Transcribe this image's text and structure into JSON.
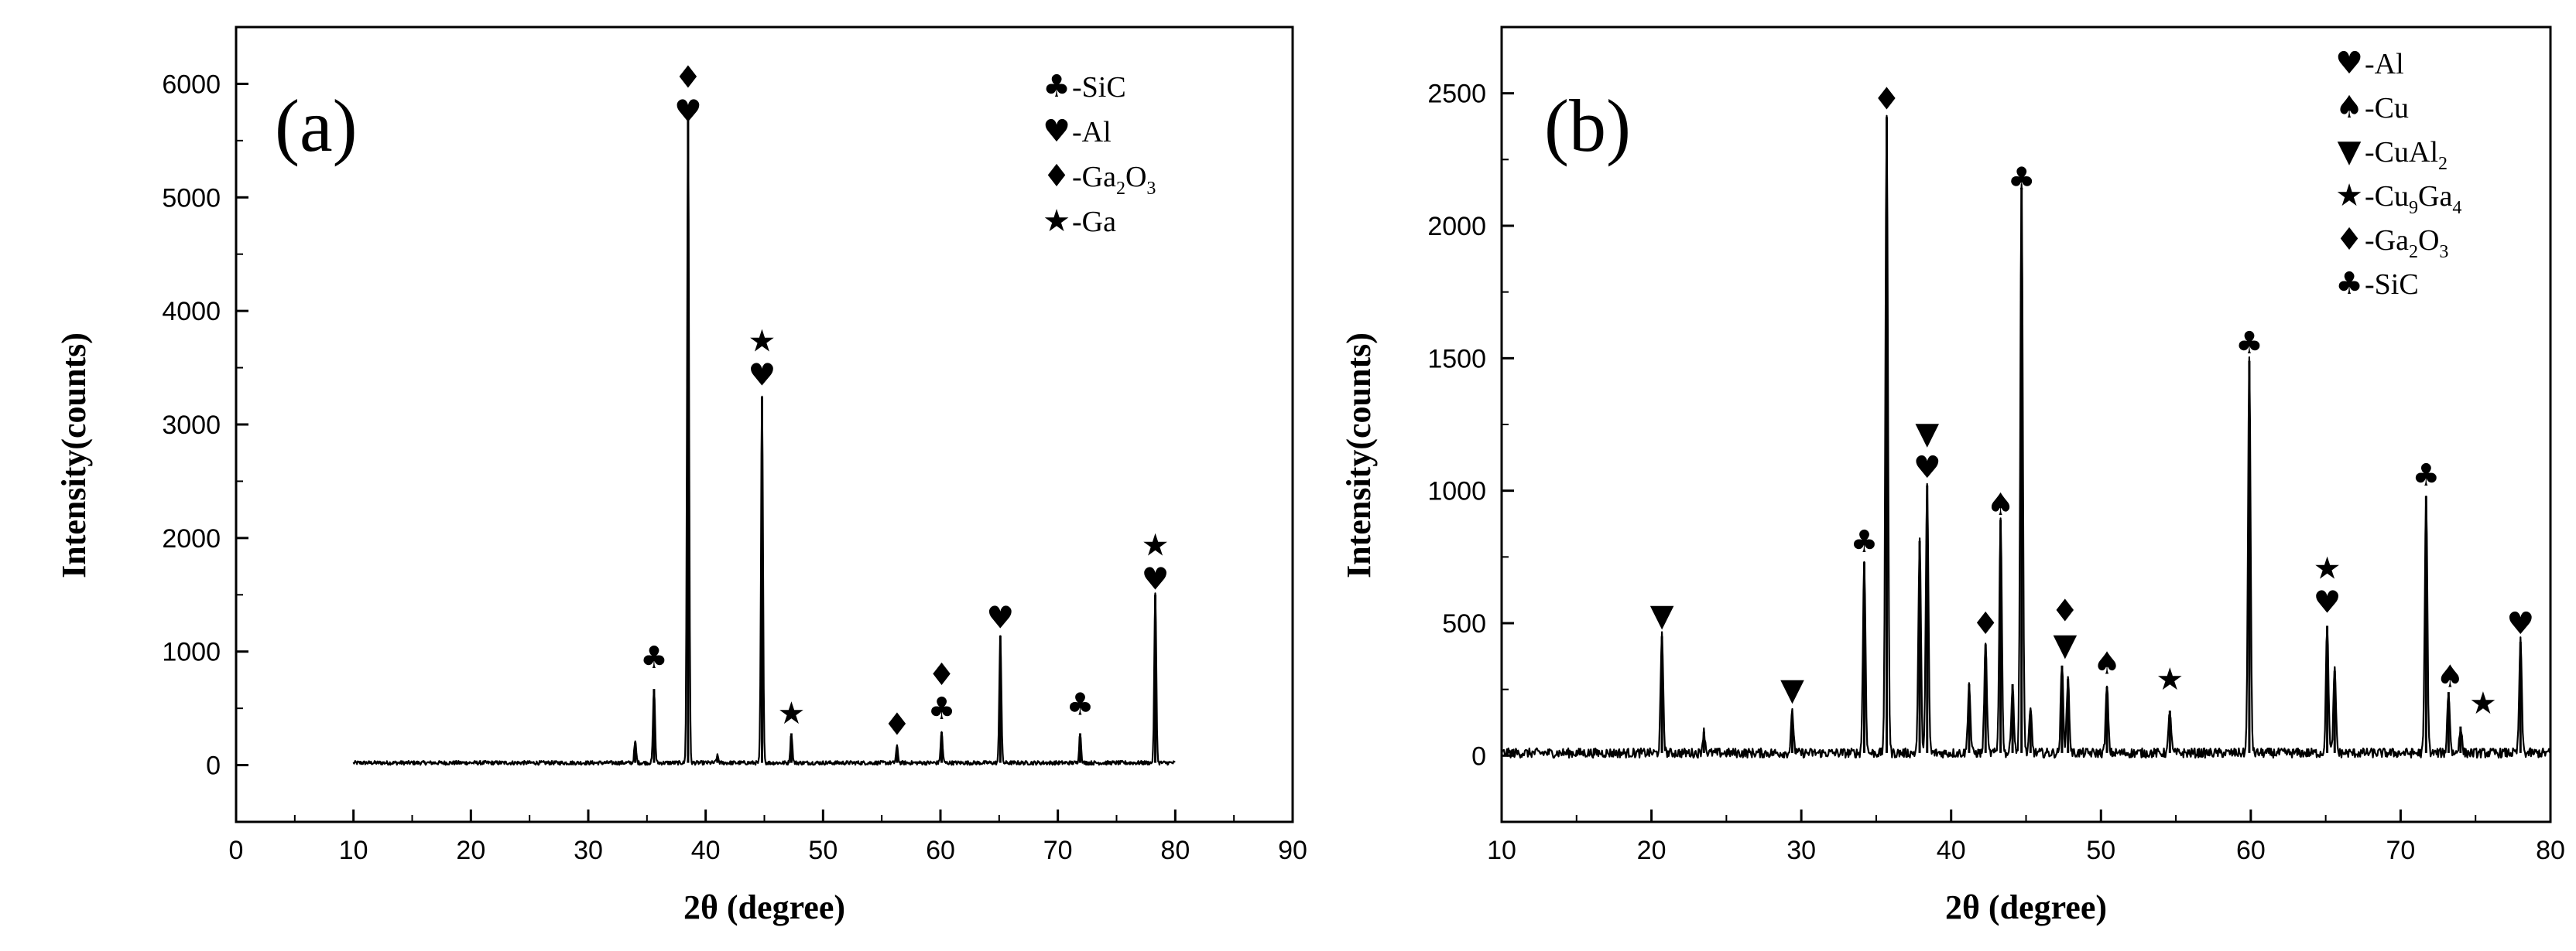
{
  "chart_data": [
    {
      "panel": "(a)",
      "type": "line",
      "xlabel": "2θ (degree)",
      "ylabel": "Intensity(counts)",
      "xlim": [
        0,
        90
      ],
      "ylim": [
        -500,
        6500
      ],
      "xticks": [
        0,
        10,
        20,
        30,
        40,
        50,
        60,
        70,
        80,
        90
      ],
      "yticks": [
        0,
        1000,
        2000,
        3000,
        4000,
        5000,
        6000
      ],
      "baseline": 20,
      "data_range": [
        10,
        80
      ],
      "legend_position": "top-right",
      "legend": [
        {
          "symbol": "club",
          "label": "-SiC"
        },
        {
          "symbol": "heart",
          "label": "-Al"
        },
        {
          "symbol": "diamond",
          "label": "-Ga",
          "sub1": "2",
          "mid": "O",
          "sub2": "3"
        },
        {
          "symbol": "star",
          "label": "-Ga"
        }
      ],
      "peaks": [
        {
          "x": 34.0,
          "y": 180
        },
        {
          "x": 35.6,
          "y": 650
        },
        {
          "x": 38.5,
          "y": 5700
        },
        {
          "x": 41.0,
          "y": 60
        },
        {
          "x": 44.8,
          "y": 3220
        },
        {
          "x": 47.3,
          "y": 260
        },
        {
          "x": 56.3,
          "y": 140
        },
        {
          "x": 60.1,
          "y": 270
        },
        {
          "x": 65.1,
          "y": 1120
        },
        {
          "x": 71.9,
          "y": 260
        },
        {
          "x": 78.3,
          "y": 1480
        }
      ],
      "markers": [
        {
          "x": 35.6,
          "y": 950,
          "symbols": [
            "club"
          ]
        },
        {
          "x": 38.5,
          "y": 5760,
          "symbols": [
            "heart",
            "diamond"
          ]
        },
        {
          "x": 44.8,
          "y": 3440,
          "symbols": [
            "heart",
            "star"
          ]
        },
        {
          "x": 47.3,
          "y": 460,
          "symbols": [
            "star"
          ]
        },
        {
          "x": 56.3,
          "y": 360,
          "symbols": [
            "diamond"
          ]
        },
        {
          "x": 60.1,
          "y": 500,
          "symbols": [
            "club",
            "diamond"
          ]
        },
        {
          "x": 65.1,
          "y": 1300,
          "symbols": [
            "heart"
          ]
        },
        {
          "x": 71.9,
          "y": 540,
          "symbols": [
            "club"
          ]
        },
        {
          "x": 78.3,
          "y": 1640,
          "symbols": [
            "heart",
            "star"
          ]
        }
      ]
    },
    {
      "panel": "(b)",
      "type": "line",
      "xlabel": "2θ (degree)",
      "ylabel": "Intensity(counts)",
      "xlim": [
        10,
        80
      ],
      "ylim": [
        -250,
        2750
      ],
      "xticks": [
        10,
        20,
        30,
        40,
        50,
        60,
        70,
        80
      ],
      "yticks": [
        0,
        500,
        1000,
        1500,
        2000,
        2500
      ],
      "baseline": 10,
      "data_range": [
        10,
        80
      ],
      "legend_position": "top-right",
      "legend": [
        {
          "symbol": "heart",
          "label": "-Al"
        },
        {
          "symbol": "spade",
          "label": "-Cu"
        },
        {
          "symbol": "triangle-down",
          "label": "-CuAl",
          "sub1": "2"
        },
        {
          "symbol": "star",
          "label": "-Cu",
          "sub1": "9",
          "mid": "Ga",
          "sub2": "4"
        },
        {
          "symbol": "diamond",
          "label": "-Ga",
          "sub1": "2",
          "mid": "O",
          "sub2": "3"
        },
        {
          "symbol": "club",
          "label": "-SiC"
        }
      ],
      "peaks": [
        {
          "x": 20.7,
          "y": 440
        },
        {
          "x": 23.5,
          "y": 80
        },
        {
          "x": 29.4,
          "y": 150
        },
        {
          "x": 34.2,
          "y": 720
        },
        {
          "x": 35.7,
          "y": 2400
        },
        {
          "x": 37.9,
          "y": 800
        },
        {
          "x": 38.4,
          "y": 1010
        },
        {
          "x": 41.2,
          "y": 260
        },
        {
          "x": 42.3,
          "y": 410
        },
        {
          "x": 43.3,
          "y": 880
        },
        {
          "x": 44.1,
          "y": 260
        },
        {
          "x": 44.7,
          "y": 2130
        },
        {
          "x": 45.3,
          "y": 160
        },
        {
          "x": 47.4,
          "y": 330
        },
        {
          "x": 47.8,
          "y": 280
        },
        {
          "x": 50.4,
          "y": 250
        },
        {
          "x": 54.6,
          "y": 160
        },
        {
          "x": 59.9,
          "y": 1480
        },
        {
          "x": 65.1,
          "y": 480
        },
        {
          "x": 65.6,
          "y": 310
        },
        {
          "x": 71.7,
          "y": 970
        },
        {
          "x": 73.2,
          "y": 230
        },
        {
          "x": 74.0,
          "y": 100
        },
        {
          "x": 78.0,
          "y": 420
        }
      ],
      "markers": [
        {
          "x": 20.7,
          "y": 530,
          "symbols": [
            "triangle-down"
          ]
        },
        {
          "x": 29.4,
          "y": 250,
          "symbols": [
            "triangle-down"
          ]
        },
        {
          "x": 34.2,
          "y": 810,
          "symbols": [
            "club"
          ]
        },
        {
          "x": 35.7,
          "y": 2480,
          "symbols": [
            "diamond"
          ]
        },
        {
          "x": 38.4,
          "y": 1090,
          "symbols": [
            "heart",
            "triangle-down"
          ]
        },
        {
          "x": 42.3,
          "y": 500,
          "symbols": [
            "diamond"
          ]
        },
        {
          "x": 43.3,
          "y": 950,
          "symbols": [
            "spade"
          ]
        },
        {
          "x": 47.6,
          "y": 420,
          "symbols": [
            "triangle-down",
            "diamond"
          ]
        },
        {
          "x": 44.7,
          "y": 2180,
          "symbols": [
            "club"
          ]
        },
        {
          "x": 50.4,
          "y": 350,
          "symbols": [
            "spade"
          ]
        },
        {
          "x": 54.6,
          "y": 290,
          "symbols": [
            "star"
          ]
        },
        {
          "x": 59.9,
          "y": 1560,
          "symbols": [
            "club"
          ]
        },
        {
          "x": 65.1,
          "y": 580,
          "symbols": [
            "heart",
            "star"
          ]
        },
        {
          "x": 71.7,
          "y": 1060,
          "symbols": [
            "club"
          ]
        },
        {
          "x": 73.3,
          "y": 300,
          "symbols": [
            "spade"
          ]
        },
        {
          "x": 75.5,
          "y": 200,
          "symbols": [
            "star"
          ]
        },
        {
          "x": 78.0,
          "y": 500,
          "symbols": [
            "heart"
          ]
        }
      ]
    }
  ]
}
